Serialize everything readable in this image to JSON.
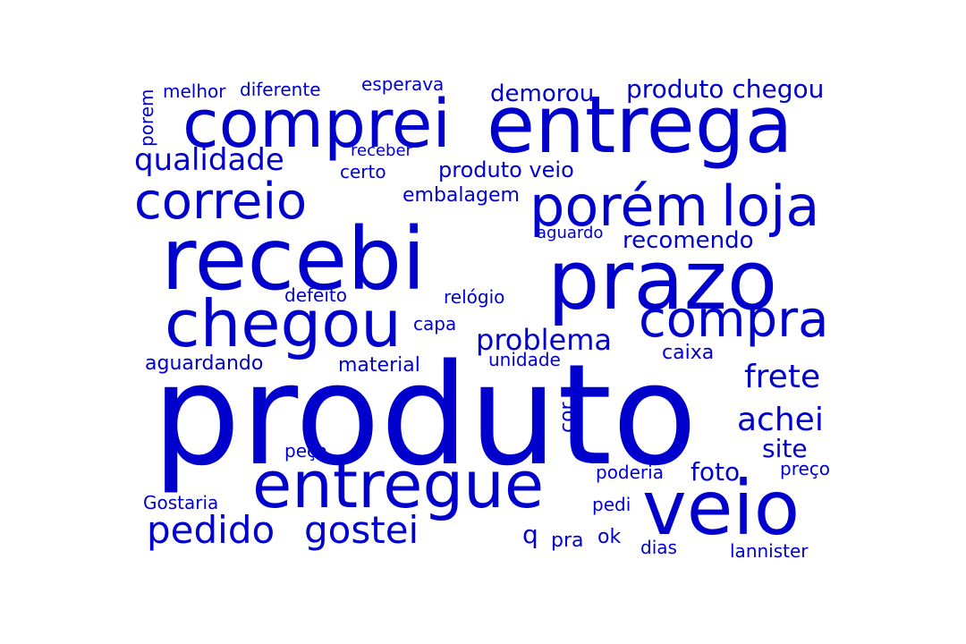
{
  "color": "#0000CC",
  "words": [
    "produto",
    "recebi",
    "entrega",
    "comprei",
    "prazo",
    "veio",
    "entregue",
    "chegou",
    "correio",
    "porém",
    "loja",
    "compra",
    "pedido",
    "gostei",
    "qualidade",
    "produto chegou",
    "demorou",
    "problema",
    "frete",
    "achei",
    "site",
    "recomendo",
    "embalagem",
    "produto veio",
    "aguardando",
    "material",
    "caixa",
    "unidade",
    "relógio",
    "defeito",
    "capa",
    "foto",
    "poderia",
    "preço",
    "peça",
    "Gostaria",
    "pedi",
    "q",
    "pra",
    "ok",
    "dias",
    "lannister",
    "melhor",
    "diferente",
    "esperava",
    "receber",
    "certo",
    "aguardo",
    "porem",
    "cor"
  ]
}
